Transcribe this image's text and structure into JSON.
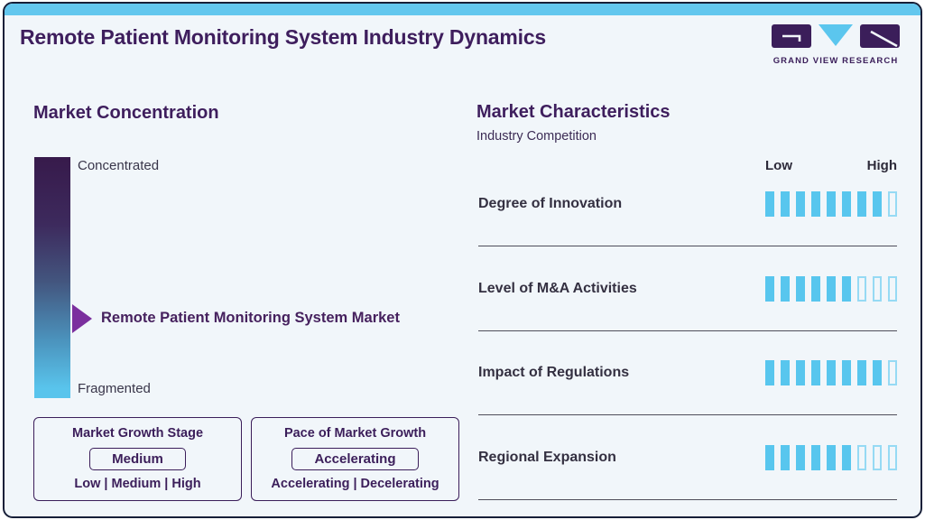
{
  "colors": {
    "accent_blue": "#63c7ee",
    "dark_purple": "#3b1e5a",
    "arrow_purple": "#7b2f9e",
    "card_background": "#f1f6fa",
    "frame_navy": "#171f38"
  },
  "header": {
    "title": "Remote Patient Monitoring System Industry Dynamics",
    "logo_text": "GRAND VIEW RESEARCH"
  },
  "market_concentration": {
    "heading": "Market Concentration",
    "scale_top_label": "Concentrated",
    "scale_bottom_label": "Fragmented",
    "pointer_label": "Remote Patient Monitoring System Market",
    "growth_stage": {
      "title": "Market Growth Stage",
      "value": "Medium",
      "options": "Low | Medium | High"
    },
    "growth_pace": {
      "title": "Pace of Market Growth",
      "value": "Accelerating",
      "options": "Accelerating | Decelerating"
    }
  },
  "market_characteristics": {
    "heading": "Market Characteristics",
    "subheading": "Industry Competition",
    "scale_low": "Low",
    "scale_high": "High",
    "rows": [
      {
        "label": "Degree of Innovation",
        "filled": 8,
        "total": 9
      },
      {
        "label": "Level of M&A Activities",
        "filled": 6,
        "total": 9
      },
      {
        "label": "Impact of Regulations",
        "filled": 8,
        "total": 9
      },
      {
        "label": "Regional Expansion",
        "filled": 6,
        "total": 9
      }
    ]
  },
  "chart_data": [
    {
      "type": "bar",
      "title": "Market Characteristics - Industry Competition",
      "categories": [
        "Degree of Innovation",
        "Level of M&A Activities",
        "Impact of Regulations",
        "Regional Expansion"
      ],
      "values": [
        8,
        6,
        8,
        6
      ],
      "value_max": 9,
      "axis_labels": [
        "Low",
        "High"
      ],
      "grid": false,
      "legend_position": "none"
    },
    {
      "type": "scale",
      "title": "Market Concentration",
      "scale_ends": [
        "Concentrated",
        "Fragmented"
      ],
      "marker_label": "Remote Patient Monitoring System Market",
      "marker_position_from_top": 0.67
    },
    {
      "type": "table",
      "title": "Market Growth Stage",
      "value": "Medium",
      "options": [
        "Low",
        "Medium",
        "High"
      ]
    },
    {
      "type": "table",
      "title": "Pace of Market Growth",
      "value": "Accelerating",
      "options": [
        "Accelerating",
        "Decelerating"
      ]
    }
  ]
}
